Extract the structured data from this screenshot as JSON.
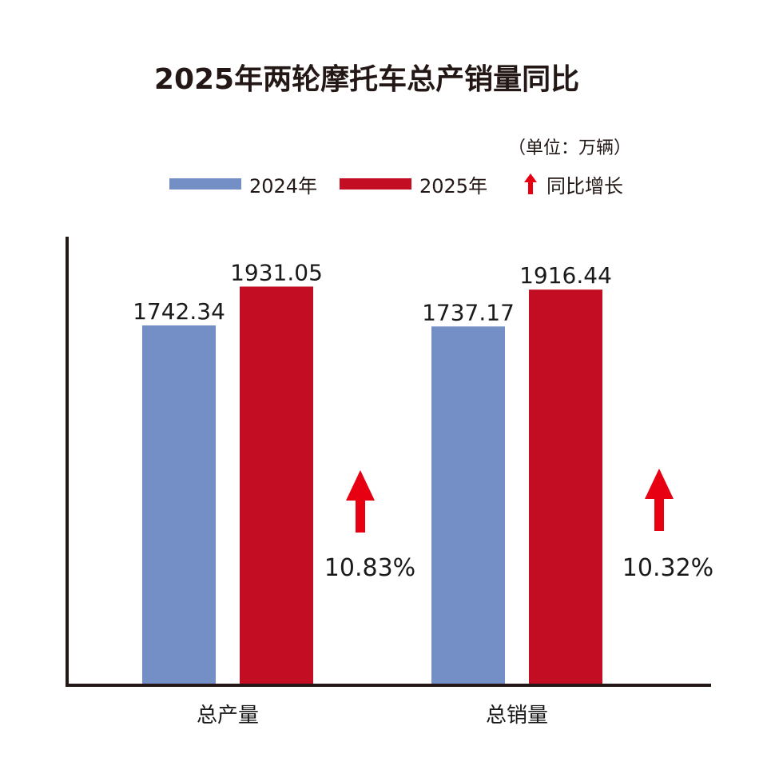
{
  "title": "2025年两轮摩托车总产销量同比",
  "unit": "（单位：万辆）",
  "legend": [
    {
      "label": "2024年",
      "color": "#738fc6",
      "icon": "blue-swatch-icon"
    },
    {
      "label": "2025年",
      "color": "#c30d23",
      "icon": "red-swatch-icon"
    },
    {
      "label": "同比增长",
      "color": "#e60012",
      "icon": "up-arrow-icon"
    }
  ],
  "chart_data": {
    "type": "bar",
    "title": "2025年两轮摩托车总产销量同比",
    "ylabel": "",
    "xlabel": "",
    "categories": [
      "总产量",
      "总销量"
    ],
    "series": [
      {
        "name": "2024年",
        "color": "#738fc6",
        "values": [
          1742.34,
          1737.17
        ],
        "labels": [
          "1742.34",
          "1737.17"
        ]
      },
      {
        "name": "2025年",
        "color": "#c30d23",
        "values": [
          1931.05,
          1916.44
        ],
        "labels": [
          "1931.05",
          "1916.44"
        ]
      }
    ],
    "growth": {
      "name": "同比增长",
      "color": "#e60012",
      "values": [
        "10.83%",
        "10.32%"
      ]
    },
    "ylim": [
      0,
      2100
    ],
    "grid": false
  }
}
